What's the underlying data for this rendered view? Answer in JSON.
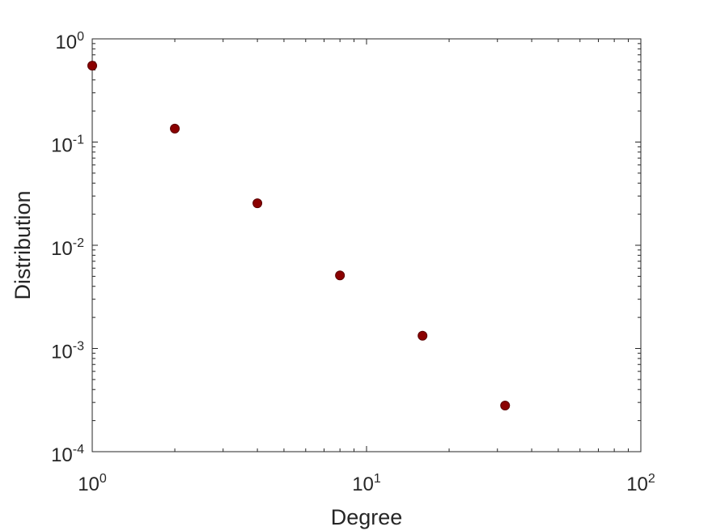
{
  "chart_data": {
    "type": "scatter",
    "xlabel": "Degree",
    "ylabel": "Distribution",
    "xscale": "log",
    "yscale": "log",
    "xlim": [
      1,
      100
    ],
    "ylim": [
      0.0001,
      1
    ],
    "grid": false,
    "legend": "none",
    "x_ticks": [
      {
        "value": 1,
        "base": "10",
        "exp": "0"
      },
      {
        "value": 10,
        "base": "10",
        "exp": "1"
      },
      {
        "value": 100,
        "base": "10",
        "exp": "2"
      }
    ],
    "y_ticks": [
      {
        "value": 1,
        "base": "10",
        "exp": "0"
      },
      {
        "value": 0.1,
        "base": "10",
        "exp": "-1"
      },
      {
        "value": 0.01,
        "base": "10",
        "exp": "-2"
      },
      {
        "value": 0.001,
        "base": "10",
        "exp": "-3"
      },
      {
        "value": 0.0001,
        "base": "10",
        "exp": "-4"
      }
    ],
    "series": [
      {
        "color": "#8b0000",
        "points": [
          {
            "x": 1,
            "y": 0.55
          },
          {
            "x": 2,
            "y": 0.135
          },
          {
            "x": 4,
            "y": 0.0255
          },
          {
            "x": 8,
            "y": 0.0051
          },
          {
            "x": 16,
            "y": 0.00133
          },
          {
            "x": 32,
            "y": 0.00028
          }
        ]
      }
    ]
  }
}
